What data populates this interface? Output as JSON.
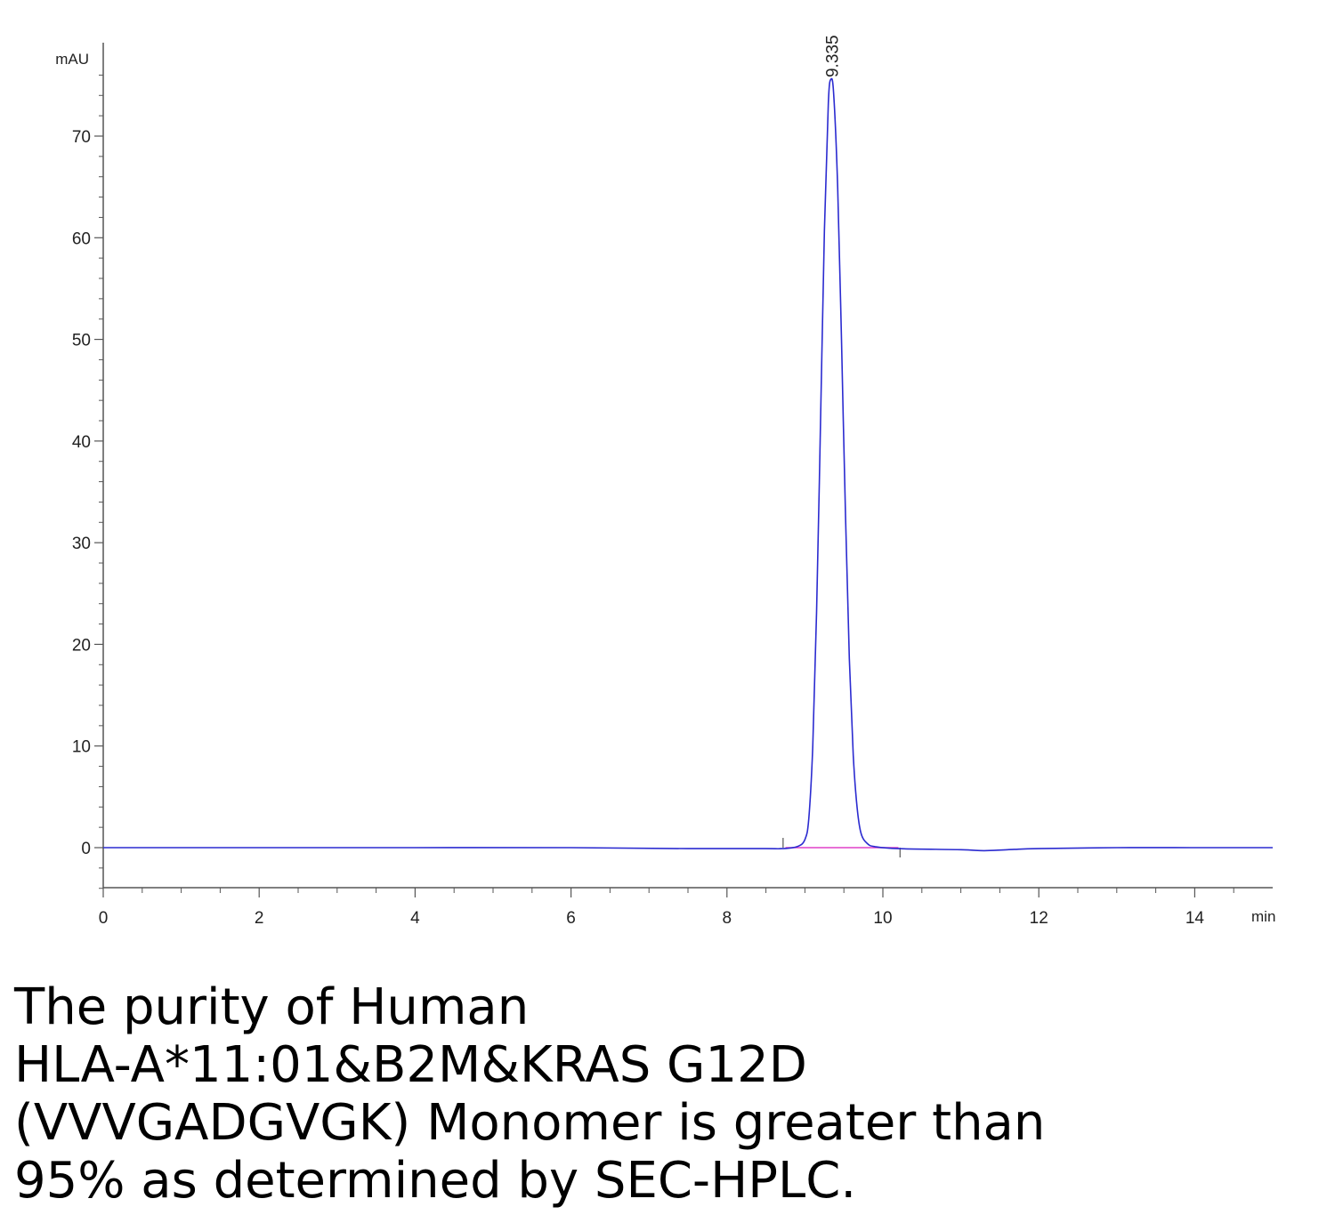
{
  "chart_data": {
    "type": "line",
    "title": "",
    "xlabel": "",
    "ylabel": "",
    "x_unit": "min",
    "y_unit": "mAU",
    "xlim": [
      0,
      15
    ],
    "ylim": [
      -4,
      77
    ],
    "x_ticks": [
      0,
      2,
      4,
      6,
      8,
      10,
      12,
      14
    ],
    "y_ticks": [
      0,
      10,
      20,
      30,
      40,
      50,
      60,
      70
    ],
    "grid": false,
    "legend": "none",
    "series": [
      {
        "color": "#2b2bd0",
        "x": [
          0,
          2,
          4,
          6,
          7.5,
          8.5,
          8.7,
          8.9,
          9.0,
          9.05,
          9.1,
          9.15,
          9.2,
          9.25,
          9.3,
          9.335,
          9.37,
          9.42,
          9.47,
          9.52,
          9.57,
          9.62,
          9.67,
          9.72,
          9.8,
          9.9,
          10.2,
          11.0,
          11.3,
          11.6,
          12.0,
          13.0,
          14.0,
          15.0
        ],
        "y": [
          0,
          0,
          0,
          0,
          -0.1,
          -0.1,
          -0.1,
          0.1,
          0.8,
          2.9,
          9.9,
          23.2,
          41.7,
          60.7,
          73.2,
          75.6,
          74.0,
          65.0,
          49.6,
          32.7,
          18.6,
          9.1,
          3.9,
          1.4,
          0.4,
          0.1,
          -0.1,
          -0.2,
          -0.3,
          -0.2,
          -0.1,
          0,
          0,
          0
        ]
      }
    ],
    "baseline": {
      "color": "#e040c8",
      "x": [
        8.75,
        10.2
      ],
      "y": [
        0,
        0
      ]
    },
    "event_marks": [
      {
        "x": 8.72,
        "direction": "up"
      },
      {
        "x": 10.22,
        "direction": "down"
      }
    ],
    "annotations": [
      {
        "text": "9.335",
        "x": 9.335,
        "y": 75.6
      }
    ]
  },
  "caption": {
    "lines": [
      "The purity of Human",
      "HLA-A*11:01&B2M&KRAS G12D",
      "(VVVGADGVGK) Monomer is greater than",
      "95% as determined by SEC-HPLC."
    ]
  }
}
